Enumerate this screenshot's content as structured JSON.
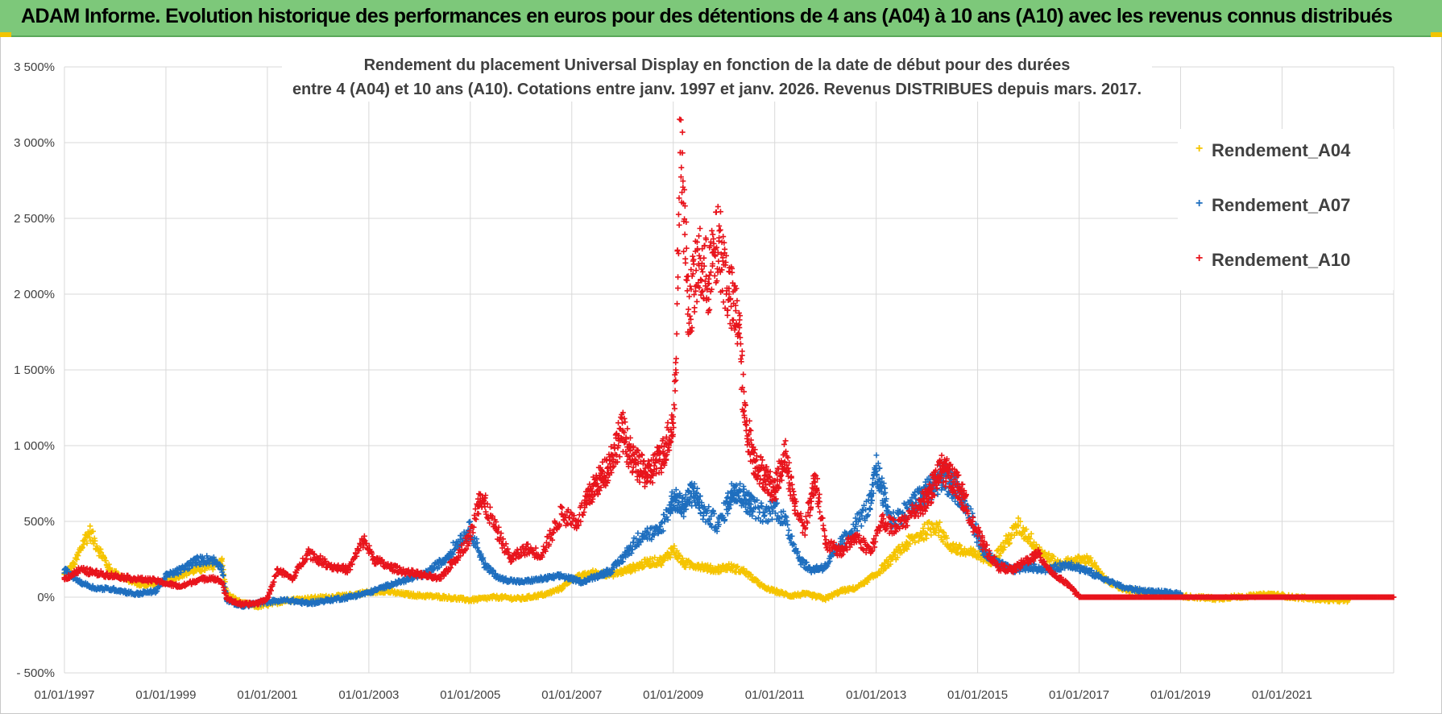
{
  "banner": {
    "text": "ADAM Informe. Evolution historique des performances en euros pour des détentions de 4 ans (A04) à 10 ans (A10) avec les revenus connus distribués"
  },
  "colors": {
    "A04": "#f5c400",
    "A07": "#1f6fbf",
    "A10": "#e8141c",
    "banner": "#7dc87a"
  },
  "chart_data": {
    "type": "scatter",
    "title": "Rendement du placement Universal Display en fonction de la date de début pour des durées",
    "subtitle": "entre 4 (A04) et 10 ans (A10). Cotations entre janv. 1997 et janv. 2026. Revenus DISTRIBUES depuis mars. 2017.",
    "y_ticks": [
      "3 500%",
      "3 000%",
      "2 500%",
      "2 000%",
      "1 500%",
      "1 000%",
      "500%",
      "0%",
      "- 500%"
    ],
    "y_tick_values": [
      3500,
      3000,
      2500,
      2000,
      1500,
      1000,
      500,
      0,
      -500
    ],
    "ylim": [
      -500,
      3500
    ],
    "x_ticks": [
      "01/01/1997",
      "01/01/1999",
      "01/01/2001",
      "01/01/2003",
      "01/01/2005",
      "01/01/2007",
      "01/01/2009",
      "01/01/2011",
      "01/01/2013",
      "01/01/2015",
      "01/01/2017",
      "01/01/2019",
      "01/01/2021"
    ],
    "x_tick_values": [
      1997,
      1999,
      2001,
      2003,
      2005,
      2007,
      2009,
      2011,
      2013,
      2015,
      2017,
      2019,
      2021
    ],
    "xlim": [
      1997,
      2023.2
    ],
    "legend": [
      "Rendement_A04",
      "Rendement_A07",
      "Rendement_A10"
    ],
    "legend_position": "top-right",
    "series": [
      {
        "name": "Rendement_A04",
        "color": "#f5c400",
        "x_end": 2022.3,
        "points": [
          [
            1997.0,
            150
          ],
          [
            1997.2,
            220
          ],
          [
            1997.4,
            380
          ],
          [
            1997.5,
            430
          ],
          [
            1997.7,
            300
          ],
          [
            1997.9,
            180
          ],
          [
            1998.2,
            120
          ],
          [
            1998.5,
            80
          ],
          [
            1998.8,
            90
          ],
          [
            1999.0,
            100
          ],
          [
            1999.3,
            150
          ],
          [
            1999.6,
            180
          ],
          [
            1999.9,
            200
          ],
          [
            2000.1,
            250
          ],
          [
            2000.2,
            20
          ],
          [
            2000.5,
            -40
          ],
          [
            2000.8,
            -60
          ],
          [
            2001.0,
            -50
          ],
          [
            2001.4,
            -20
          ],
          [
            2001.8,
            -10
          ],
          [
            2002.2,
            0
          ],
          [
            2002.6,
            10
          ],
          [
            2002.9,
            30
          ],
          [
            2003.3,
            40
          ],
          [
            2003.7,
            20
          ],
          [
            2004.0,
            10
          ],
          [
            2004.5,
            0
          ],
          [
            2005.0,
            -20
          ],
          [
            2005.5,
            0
          ],
          [
            2006.0,
            -10
          ],
          [
            2006.5,
            20
          ],
          [
            2006.8,
            60
          ],
          [
            2007.0,
            120
          ],
          [
            2007.4,
            160
          ],
          [
            2007.8,
            150
          ],
          [
            2008.1,
            180
          ],
          [
            2008.5,
            230
          ],
          [
            2008.8,
            240
          ],
          [
            2009.0,
            320
          ],
          [
            2009.2,
            220
          ],
          [
            2009.5,
            210
          ],
          [
            2009.8,
            180
          ],
          [
            2010.1,
            200
          ],
          [
            2010.4,
            170
          ],
          [
            2010.8,
            60
          ],
          [
            2011.0,
            40
          ],
          [
            2011.3,
            10
          ],
          [
            2011.6,
            20
          ],
          [
            2012.0,
            -10
          ],
          [
            2012.3,
            40
          ],
          [
            2012.6,
            60
          ],
          [
            2013.0,
            150
          ],
          [
            2013.3,
            250
          ],
          [
            2013.6,
            350
          ],
          [
            2013.9,
            420
          ],
          [
            2014.2,
            480
          ],
          [
            2014.4,
            350
          ],
          [
            2014.7,
            300
          ],
          [
            2015.0,
            280
          ],
          [
            2015.3,
            240
          ],
          [
            2015.6,
            380
          ],
          [
            2015.8,
            470
          ],
          [
            2016.0,
            400
          ],
          [
            2016.3,
            280
          ],
          [
            2016.6,
            220
          ],
          [
            2016.9,
            240
          ],
          [
            2017.2,
            250
          ],
          [
            2017.5,
            120
          ],
          [
            2017.8,
            60
          ],
          [
            2018.1,
            40
          ],
          [
            2018.5,
            20
          ],
          [
            2018.9,
            10
          ],
          [
            2019.3,
            0
          ],
          [
            2019.7,
            -10
          ],
          [
            2020.0,
            0
          ],
          [
            2020.5,
            10
          ],
          [
            2020.8,
            20
          ],
          [
            2021.2,
            0
          ],
          [
            2021.6,
            -10
          ],
          [
            2022.0,
            -20
          ],
          [
            2022.3,
            -20
          ]
        ]
      },
      {
        "name": "Rendement_A07",
        "color": "#1f6fbf",
        "x_end": 2019.0,
        "points": [
          [
            1997.0,
            180
          ],
          [
            1997.3,
            100
          ],
          [
            1997.6,
            60
          ],
          [
            1998.0,
            50
          ],
          [
            1998.4,
            20
          ],
          [
            1998.8,
            40
          ],
          [
            1999.0,
            140
          ],
          [
            1999.3,
            180
          ],
          [
            1999.6,
            240
          ],
          [
            1999.9,
            250
          ],
          [
            2000.1,
            200
          ],
          [
            2000.2,
            -20
          ],
          [
            2000.5,
            -60
          ],
          [
            2000.8,
            -40
          ],
          [
            2001.0,
            -30
          ],
          [
            2001.4,
            -20
          ],
          [
            2001.8,
            -40
          ],
          [
            2002.2,
            -20
          ],
          [
            2002.6,
            0
          ],
          [
            2003.0,
            30
          ],
          [
            2003.4,
            80
          ],
          [
            2003.8,
            120
          ],
          [
            2004.1,
            150
          ],
          [
            2004.5,
            250
          ],
          [
            2004.8,
            380
          ],
          [
            2005.0,
            450
          ],
          [
            2005.3,
            200
          ],
          [
            2005.6,
            120
          ],
          [
            2006.0,
            100
          ],
          [
            2006.4,
            120
          ],
          [
            2006.8,
            140
          ],
          [
            2007.2,
            100
          ],
          [
            2007.5,
            140
          ],
          [
            2007.8,
            180
          ],
          [
            2008.1,
            300
          ],
          [
            2008.4,
            420
          ],
          [
            2008.7,
            420
          ],
          [
            2009.0,
            650
          ],
          [
            2009.2,
            600
          ],
          [
            2009.4,
            700
          ],
          [
            2009.6,
            560
          ],
          [
            2009.9,
            480
          ],
          [
            2010.2,
            720
          ],
          [
            2010.5,
            620
          ],
          [
            2010.8,
            540
          ],
          [
            2011.0,
            600
          ],
          [
            2011.2,
            500
          ],
          [
            2011.5,
            250
          ],
          [
            2011.7,
            180
          ],
          [
            2012.0,
            200
          ],
          [
            2012.3,
            350
          ],
          [
            2012.6,
            480
          ],
          [
            2012.9,
            620
          ],
          [
            2013.0,
            850
          ],
          [
            2013.3,
            500
          ],
          [
            2013.7,
            600
          ],
          [
            2014.0,
            700
          ],
          [
            2014.3,
            800
          ],
          [
            2014.6,
            700
          ],
          [
            2014.9,
            500
          ],
          [
            2015.1,
            300
          ],
          [
            2015.4,
            220
          ],
          [
            2015.7,
            180
          ],
          [
            2016.0,
            200
          ],
          [
            2016.4,
            180
          ],
          [
            2016.8,
            220
          ],
          [
            2017.1,
            180
          ],
          [
            2017.5,
            120
          ],
          [
            2017.9,
            60
          ],
          [
            2018.3,
            40
          ],
          [
            2018.7,
            30
          ],
          [
            2019.0,
            20
          ]
        ]
      },
      {
        "name": "Rendement_A10",
        "color": "#e8141c",
        "x_end": 2023.2,
        "points": [
          [
            1997.0,
            120
          ],
          [
            1997.3,
            180
          ],
          [
            1997.6,
            160
          ],
          [
            1998.0,
            140
          ],
          [
            1998.4,
            120
          ],
          [
            1998.8,
            110
          ],
          [
            1999.0,
            90
          ],
          [
            1999.3,
            70
          ],
          [
            1999.6,
            110
          ],
          [
            1999.9,
            130
          ],
          [
            2000.1,
            100
          ],
          [
            2000.2,
            -10
          ],
          [
            2000.5,
            -50
          ],
          [
            2000.8,
            -40
          ],
          [
            2001.0,
            -10
          ],
          [
            2001.2,
            180
          ],
          [
            2001.5,
            120
          ],
          [
            2001.8,
            300
          ],
          [
            2002.0,
            250
          ],
          [
            2002.3,
            200
          ],
          [
            2002.6,
            180
          ],
          [
            2002.9,
            380
          ],
          [
            2003.1,
            250
          ],
          [
            2003.4,
            200
          ],
          [
            2003.7,
            170
          ],
          [
            2004.0,
            150
          ],
          [
            2004.4,
            120
          ],
          [
            2004.7,
            250
          ],
          [
            2005.0,
            400
          ],
          [
            2005.2,
            680
          ],
          [
            2005.5,
            450
          ],
          [
            2005.8,
            250
          ],
          [
            2006.1,
            320
          ],
          [
            2006.4,
            280
          ],
          [
            2006.8,
            550
          ],
          [
            2007.1,
            500
          ],
          [
            2007.4,
            700
          ],
          [
            2007.7,
            850
          ],
          [
            2008.0,
            1100
          ],
          [
            2008.2,
            900
          ],
          [
            2008.5,
            800
          ],
          [
            2008.8,
            950
          ],
          [
            2009.0,
            1150
          ],
          [
            2009.05,
            1500
          ],
          [
            2009.15,
            3150
          ],
          [
            2009.2,
            2600
          ],
          [
            2009.3,
            1900
          ],
          [
            2009.5,
            2200
          ],
          [
            2009.7,
            2100
          ],
          [
            2009.9,
            2350
          ],
          [
            2010.1,
            2000
          ],
          [
            2010.3,
            1800
          ],
          [
            2010.4,
            1200
          ],
          [
            2010.6,
            900
          ],
          [
            2010.8,
            800
          ],
          [
            2011.0,
            700
          ],
          [
            2011.2,
            950
          ],
          [
            2011.4,
            600
          ],
          [
            2011.6,
            450
          ],
          [
            2011.8,
            800
          ],
          [
            2012.0,
            350
          ],
          [
            2012.3,
            300
          ],
          [
            2012.6,
            400
          ],
          [
            2012.9,
            300
          ],
          [
            2013.1,
            500
          ],
          [
            2013.4,
            450
          ],
          [
            2013.7,
            550
          ],
          [
            2014.0,
            650
          ],
          [
            2014.3,
            850
          ],
          [
            2014.6,
            750
          ],
          [
            2014.9,
            500
          ],
          [
            2015.1,
            350
          ],
          [
            2015.4,
            200
          ],
          [
            2015.7,
            180
          ],
          [
            2016.0,
            250
          ],
          [
            2016.2,
            280
          ],
          [
            2016.5,
            150
          ],
          [
            2016.8,
            80
          ],
          [
            2017.0,
            0
          ],
          [
            2023.2,
            0
          ]
        ]
      }
    ]
  }
}
